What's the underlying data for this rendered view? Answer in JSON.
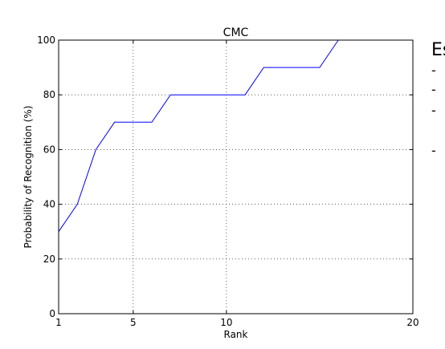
{
  "chart_data": {
    "type": "line",
    "title": "CMC",
    "xlabel": "Rank",
    "ylabel": "Probability of Recognition (%)",
    "xlim": [
      1,
      20
    ],
    "ylim": [
      0,
      100
    ],
    "xticks": [
      1,
      5,
      10,
      20
    ],
    "yticks": [
      0,
      20,
      40,
      60,
      80,
      100
    ],
    "grid": true,
    "series": [
      {
        "color": "#0000ff",
        "x": [
          1,
          2,
          3,
          4,
          5,
          6,
          7,
          8,
          9,
          10,
          11,
          12,
          13,
          14,
          15,
          16
        ],
        "y": [
          30,
          40,
          60,
          70,
          70,
          70,
          80,
          80,
          80,
          80,
          80,
          90,
          90,
          90,
          90,
          100
        ]
      }
    ]
  },
  "side_panel": {
    "heading": "Es",
    "dashes": [
      "-",
      "-",
      "-",
      "-"
    ]
  }
}
